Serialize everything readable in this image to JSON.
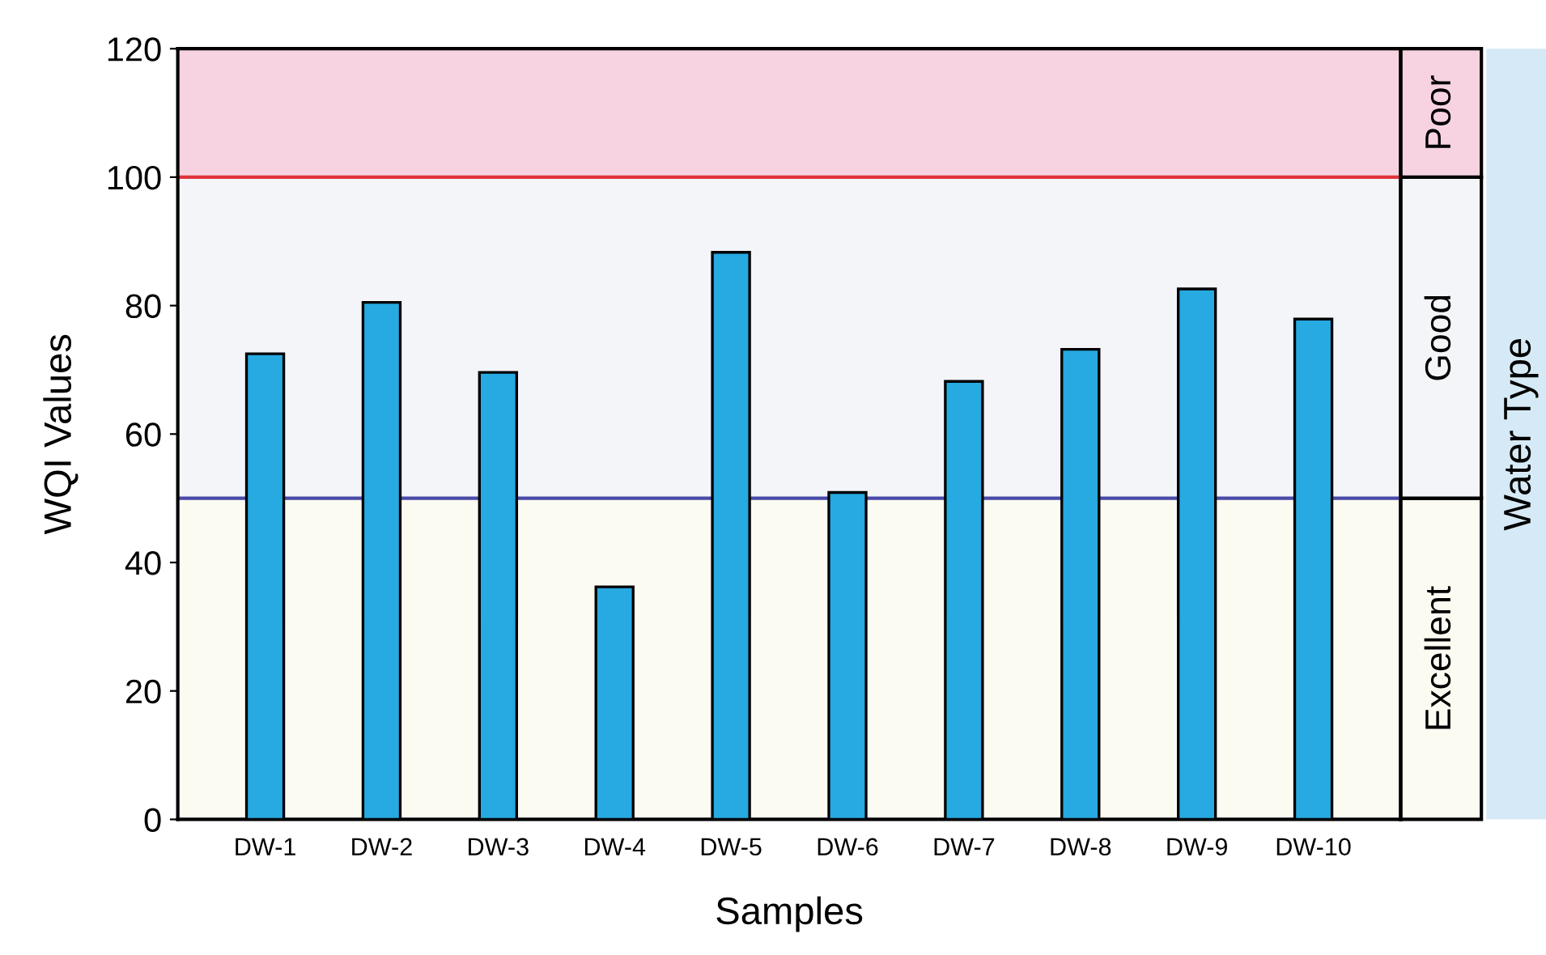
{
  "chart_data": {
    "type": "bar",
    "xlabel": "Samples",
    "ylabel": "WQI Values",
    "categories": [
      "DW-1",
      "DW-2",
      "DW-3",
      "DW-4",
      "DW-5",
      "DW-6",
      "DW-7",
      "DW-8",
      "DW-9",
      "DW-10"
    ],
    "values": [
      72.5,
      80.5,
      69.6,
      36.2,
      88.3,
      50.9,
      68.2,
      73.2,
      82.6,
      77.9
    ],
    "color": "#27a9e1",
    "ylim": [
      0,
      120
    ],
    "yticks": [
      0,
      20,
      40,
      60,
      80,
      100,
      120
    ],
    "bands": [
      {
        "axis": "y",
        "from": 0,
        "to": 50,
        "label": "Excellent",
        "color": "#fcfbf2"
      },
      {
        "axis": "y",
        "from": 50,
        "to": 100,
        "label": "Good",
        "color": "#f3f5f9"
      },
      {
        "axis": "y",
        "from": 100,
        "to": 120,
        "label": "Poor",
        "color": "#f7d3e1"
      }
    ],
    "ref_lines": [
      {
        "axis": "y",
        "value": 50,
        "color": "#4a4aa8"
      },
      {
        "axis": "y",
        "value": 100,
        "color": "#e0343c"
      }
    ],
    "annotations": [
      "Water Type"
    ],
    "grid": false,
    "legend": false
  }
}
